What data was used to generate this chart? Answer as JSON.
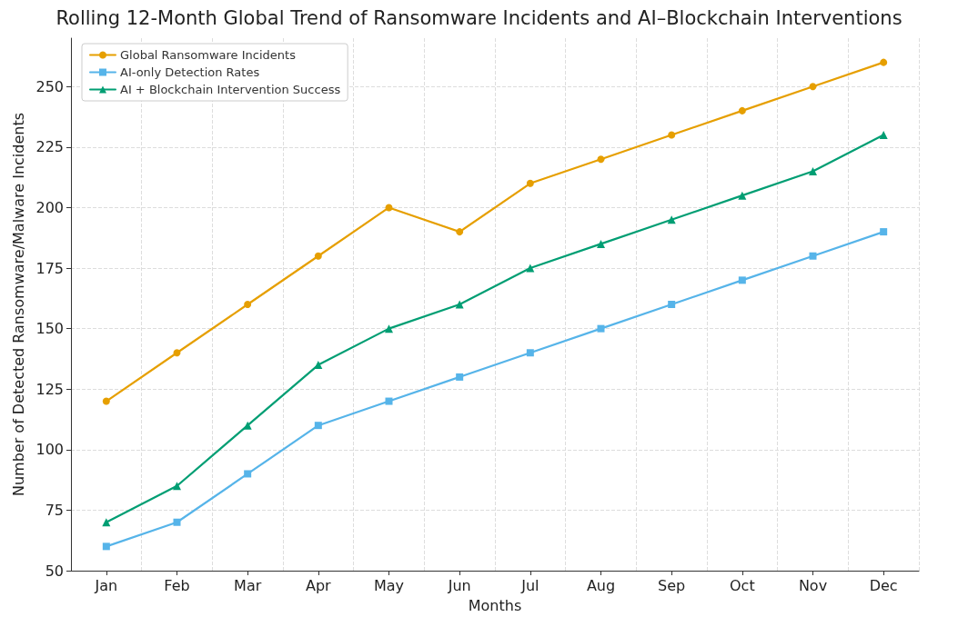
{
  "chart_data": {
    "type": "line",
    "title": "Rolling 12-Month Global Trend of Ransomware Incidents and AI–Blockchain Interventions",
    "xlabel": "Months",
    "ylabel": "Number of Detected Ransomware/Malware Incidents",
    "categories": [
      "Jan",
      "Feb",
      "Mar",
      "Apr",
      "May",
      "Jun",
      "Jul",
      "Aug",
      "Sep",
      "Oct",
      "Nov",
      "Dec"
    ],
    "series": [
      {
        "name": "Global Ransomware Incidents",
        "color": "#e69f00",
        "marker": "circle",
        "values": [
          120,
          140,
          160,
          180,
          200,
          190,
          210,
          220,
          230,
          240,
          250,
          260
        ]
      },
      {
        "name": "AI-only Detection Rates",
        "color": "#56b4e9",
        "marker": "square",
        "values": [
          60,
          70,
          90,
          110,
          120,
          130,
          140,
          150,
          160,
          170,
          180,
          190
        ]
      },
      {
        "name": "AI + Blockchain Intervention Success",
        "color": "#009e73",
        "marker": "triangle",
        "values": [
          70,
          85,
          110,
          135,
          150,
          160,
          175,
          185,
          195,
          205,
          215,
          230
        ]
      }
    ],
    "ylim": [
      50,
      270
    ],
    "yticks": [
      50,
      75,
      100,
      125,
      150,
      175,
      200,
      225,
      250
    ],
    "grid": true,
    "legend": "top left",
    "line_style": "solid"
  }
}
